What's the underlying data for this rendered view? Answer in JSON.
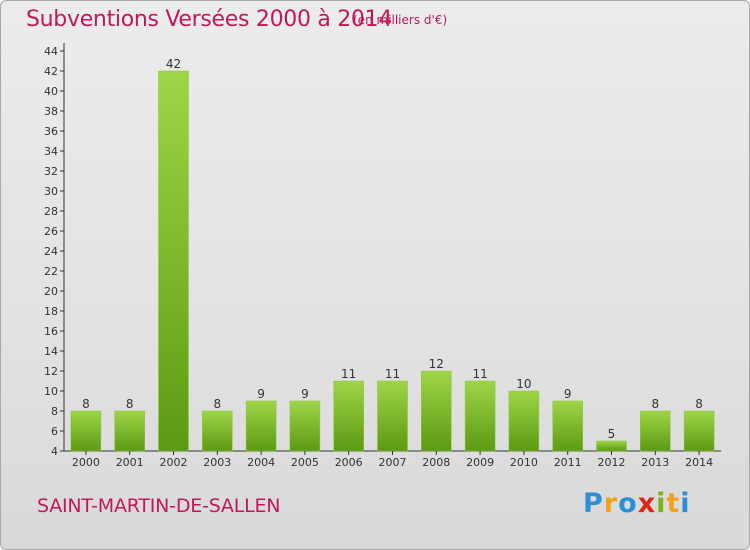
{
  "title": "Subventions Versées 2000 à 2014",
  "subtitle": "(en milliers d'€)",
  "commune": "SAINT-MARTIN-DE-SALLEN",
  "logo": {
    "letters": [
      "P",
      "r",
      "o",
      "x",
      "i",
      "t",
      "i"
    ],
    "colors": [
      "#2a8fd6",
      "#f2a21a",
      "#2a8fd6",
      "#e2231a",
      "#7ab317",
      "#f2a21a",
      "#2a8fd6"
    ]
  },
  "colors": {
    "bar": "#7ab317",
    "bar_light": "#9fd548",
    "bar_dark": "#5c9a12",
    "title": "#c2185b",
    "axis": "#333333"
  },
  "chart_data": {
    "type": "bar",
    "categories": [
      "2000",
      "2001",
      "2002",
      "2003",
      "2004",
      "2005",
      "2006",
      "2007",
      "2008",
      "2009",
      "2010",
      "2011",
      "2012",
      "2013",
      "2014"
    ],
    "values": [
      8,
      8,
      42,
      8,
      9,
      9,
      11,
      11,
      12,
      11,
      10,
      9,
      5,
      8,
      8
    ],
    "ylim": [
      4,
      44
    ],
    "yticks": [
      4,
      6,
      8,
      10,
      12,
      14,
      16,
      18,
      20,
      22,
      24,
      26,
      28,
      30,
      32,
      34,
      36,
      38,
      40,
      42,
      44
    ],
    "grid": false,
    "data_labels": true
  }
}
